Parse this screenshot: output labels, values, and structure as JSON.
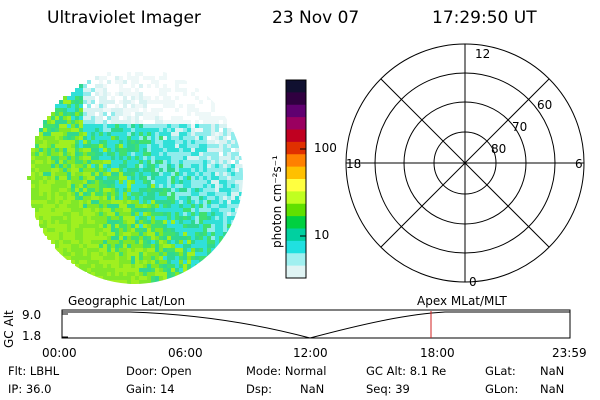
{
  "header": {
    "instrument": "Ultraviolet Imager",
    "date": "23 Nov 07",
    "time": "17:29:50 UT"
  },
  "colorbar": {
    "label": "photon cm⁻²s⁻¹",
    "ticks": [
      "100",
      "10"
    ],
    "colors": [
      "#101030",
      "#300040",
      "#600070",
      "#9a0060",
      "#c00020",
      "#e03000",
      "#ff8000",
      "#ffc000",
      "#ffff40",
      "#c0ff20",
      "#60e000",
      "#00d040",
      "#00d0a0",
      "#20e0e0",
      "#a0f0f0",
      "#e0f4f4"
    ]
  },
  "polar_plot": {
    "mlt_labels": {
      "top": "12",
      "left": "18",
      "right": "6",
      "bottom": "0"
    },
    "lat_labels": [
      "60",
      "70",
      "80"
    ]
  },
  "orbit_panel": {
    "ylabel": "GC Alt",
    "y_ticks": [
      "9.0",
      "1.8"
    ],
    "left_title": "Geographic Lat/Lon",
    "right_title": "Apex MLat/MLT",
    "x_ticks": [
      "00:00",
      "06:00",
      "12:00",
      "18:00",
      "23:59"
    ],
    "marker_color": "#d02020"
  },
  "meta": {
    "flt": "Flt: LBHL",
    "door": "Door: Open",
    "mode": "Mode: Normal",
    "gc_alt": "GC Alt: 8.1 Re",
    "glat_label": "GLat:",
    "glat_value": "NaN",
    "ip": "IP: 36.0",
    "gain": "Gain: 14",
    "dsp_label": "Dsp:",
    "dsp_value": "NaN",
    "seq": "Seq: 39",
    "glon_label": "GLon:",
    "glon_value": "NaN"
  }
}
